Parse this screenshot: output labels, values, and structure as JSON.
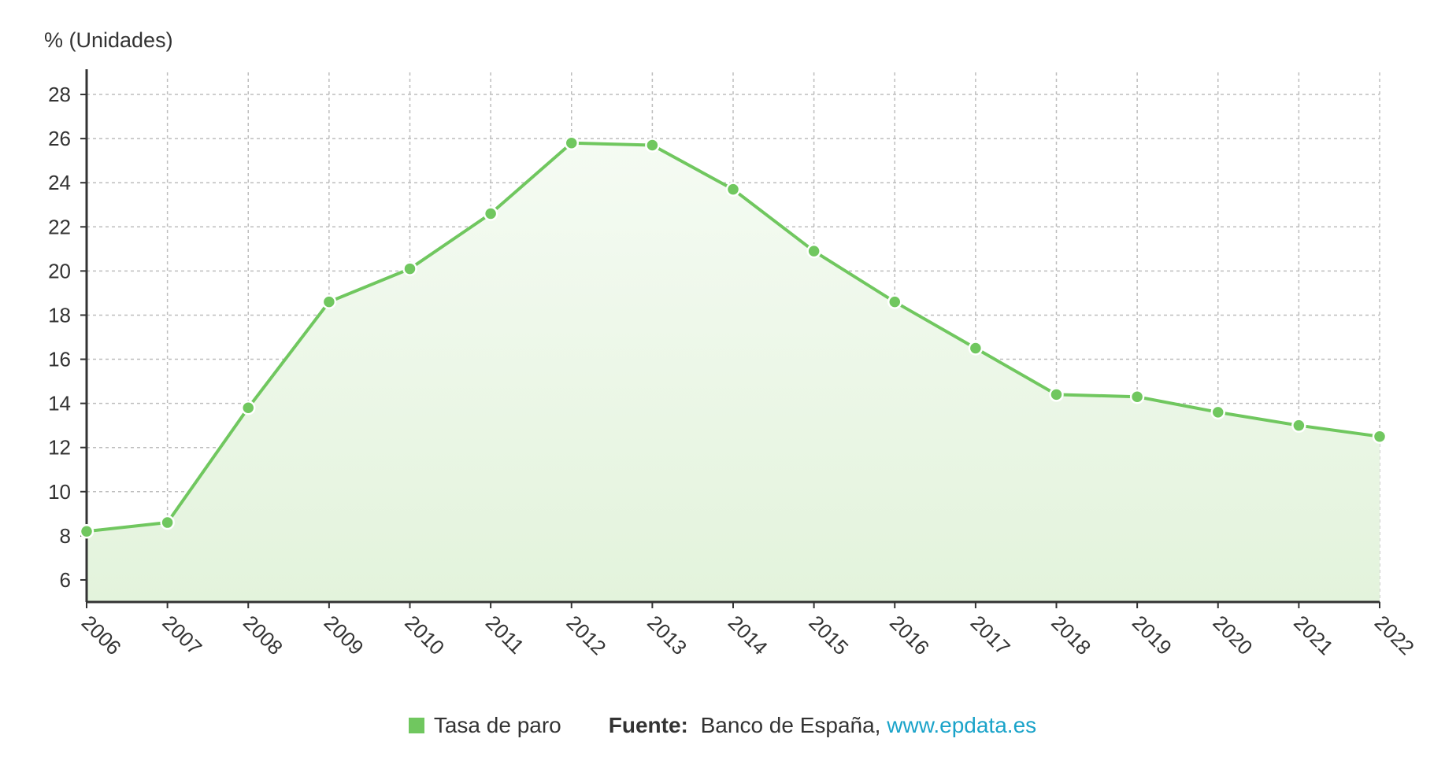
{
  "chart_data": {
    "type": "area",
    "unit_label": "% (Unidades)",
    "x": [
      "2006",
      "2007",
      "2008",
      "2009",
      "2010",
      "2011",
      "2012",
      "2013",
      "2014",
      "2015",
      "2016",
      "2017",
      "2018",
      "2019",
      "2020",
      "2021",
      "2022"
    ],
    "series": [
      {
        "name": "Tasa de paro",
        "values": [
          8.2,
          8.6,
          13.8,
          18.6,
          20.1,
          22.6,
          25.8,
          25.7,
          23.7,
          20.9,
          18.6,
          16.5,
          14.4,
          14.3,
          13.6,
          13.0,
          12.5
        ]
      }
    ],
    "ylim": [
      5,
      29
    ],
    "yticks": [
      6,
      8,
      10,
      12,
      14,
      16,
      18,
      20,
      22,
      24,
      26,
      28
    ],
    "grid": true,
    "colors": {
      "line": "#70c75f",
      "fill_top": "#f5fbf3",
      "fill_bottom": "#e3f3dc",
      "grid": "#bdbdbd",
      "axis": "#333333"
    }
  },
  "footer": {
    "legend_label": "Tasa de paro",
    "source_prefix": "Fuente:",
    "source_text": "Banco de España,",
    "source_link": "www.epdata.es"
  }
}
